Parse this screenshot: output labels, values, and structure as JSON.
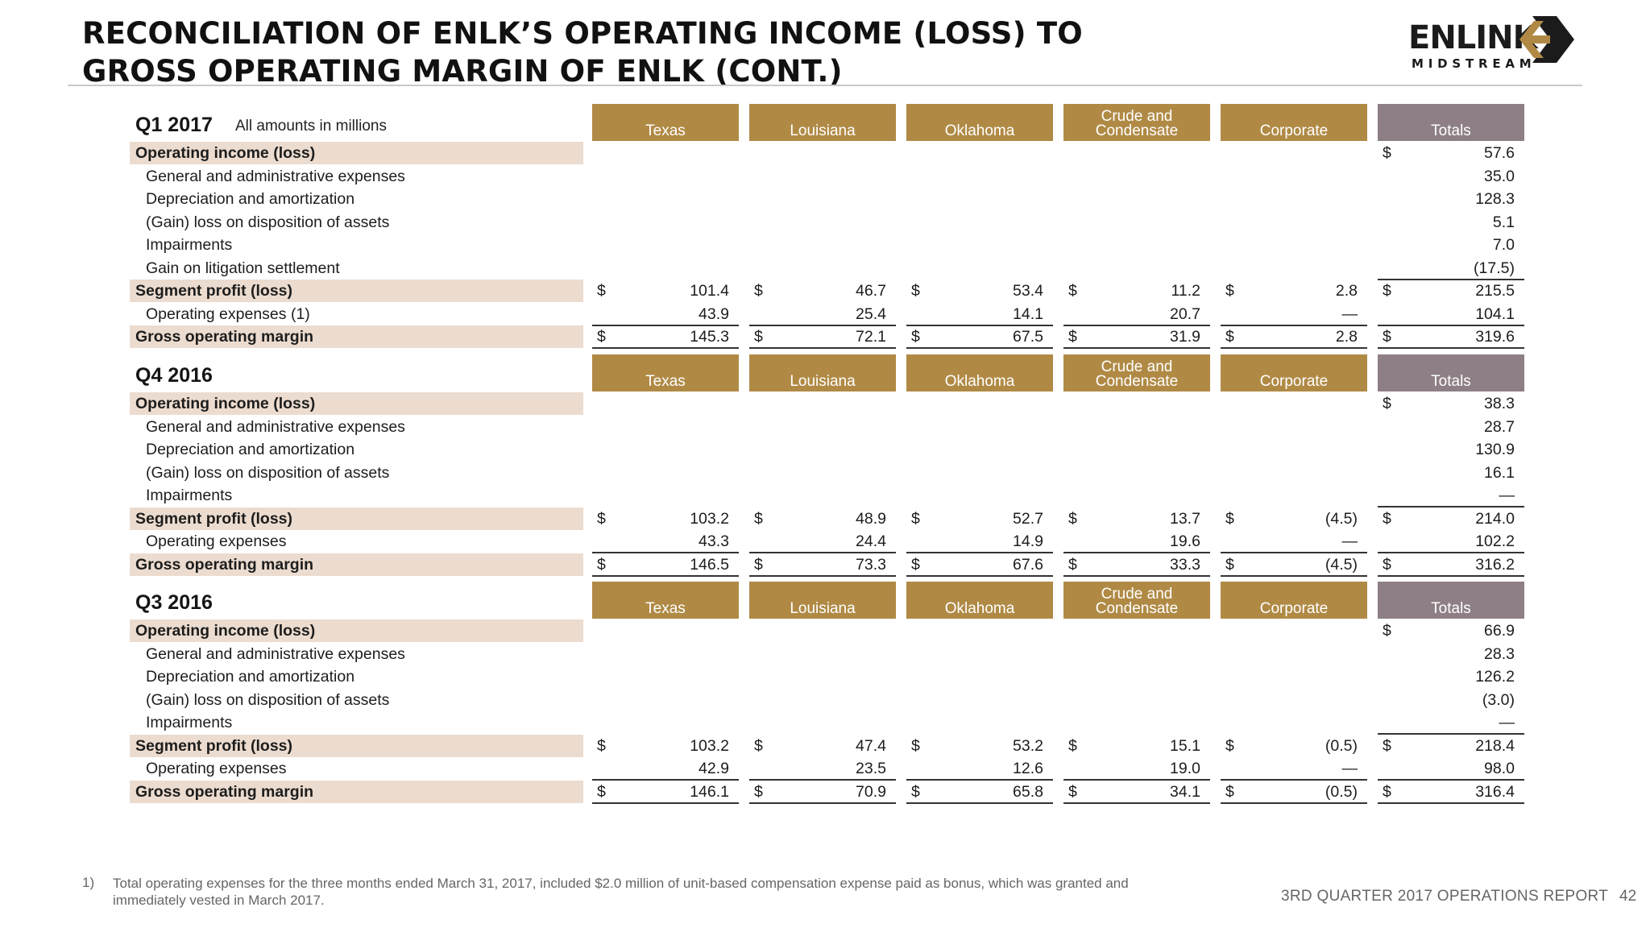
{
  "title_line1": "RECONCILIATION OF ENLK’S OPERATING INCOME (LOSS) TO",
  "title_line2": "GROSS OPERATING MARGIN OF ENLK (CONT.)",
  "logo": {
    "word": "ENLINK",
    "sub": "MIDSTREAM"
  },
  "amounts_note": "All amounts in millions",
  "columns": [
    "Texas",
    "Louisiana",
    "Oklahoma",
    "Crude and Condensate",
    "Corporate",
    "Totals"
  ],
  "sections": [
    {
      "label": "Q1 2017",
      "rows": [
        {
          "label": "Operating income (loss)",
          "bold": true,
          "values": [
            "",
            "",
            "",
            "",
            "",
            "57.6"
          ],
          "dollar": [
            false,
            false,
            false,
            false,
            false,
            true
          ],
          "underline": false
        },
        {
          "label": "General and administrative expenses",
          "bold": false,
          "values": [
            "",
            "",
            "",
            "",
            "",
            "35.0"
          ],
          "dollar": [
            false,
            false,
            false,
            false,
            false,
            false
          ],
          "underline": false
        },
        {
          "label": "Depreciation and amortization",
          "bold": false,
          "values": [
            "",
            "",
            "",
            "",
            "",
            "128.3"
          ],
          "dollar": [
            false,
            false,
            false,
            false,
            false,
            false
          ],
          "underline": false
        },
        {
          "label": "(Gain) loss on disposition of assets",
          "bold": false,
          "values": [
            "",
            "",
            "",
            "",
            "",
            "5.1"
          ],
          "dollar": [
            false,
            false,
            false,
            false,
            false,
            false
          ],
          "underline": false
        },
        {
          "label": "Impairments",
          "bold": false,
          "values": [
            "",
            "",
            "",
            "",
            "",
            "7.0"
          ],
          "dollar": [
            false,
            false,
            false,
            false,
            false,
            false
          ],
          "underline": false
        },
        {
          "label": "Gain on litigation settlement",
          "bold": false,
          "values": [
            "",
            "",
            "",
            "",
            "",
            "(17.5)"
          ],
          "dollar": [
            false,
            false,
            false,
            false,
            false,
            false
          ],
          "underline": true
        },
        {
          "label": "Segment profit (loss)",
          "bold": true,
          "values": [
            "101.4",
            "46.7",
            "53.4",
            "11.2",
            "2.8",
            "215.5"
          ],
          "dollar": [
            true,
            true,
            true,
            true,
            true,
            true
          ],
          "underline": false
        },
        {
          "label": "Operating expenses (1)",
          "bold": false,
          "values": [
            "43.9",
            "25.4",
            "14.1",
            "20.7",
            "—",
            "104.1"
          ],
          "dollar": [
            false,
            false,
            false,
            false,
            false,
            false
          ],
          "underline": true
        },
        {
          "label": "Gross operating margin",
          "bold": true,
          "values": [
            "145.3",
            "72.1",
            "67.5",
            "31.9",
            "2.8",
            "319.6"
          ],
          "dollar": [
            true,
            true,
            true,
            true,
            true,
            true
          ],
          "underline": true
        }
      ]
    },
    {
      "label": "Q4 2016",
      "rows": [
        {
          "label": "Operating income (loss)",
          "bold": true,
          "values": [
            "",
            "",
            "",
            "",
            "",
            "38.3"
          ],
          "dollar": [
            false,
            false,
            false,
            false,
            false,
            true
          ],
          "underline": false
        },
        {
          "label": "General and administrative expenses",
          "bold": false,
          "values": [
            "",
            "",
            "",
            "",
            "",
            "28.7"
          ],
          "dollar": [
            false,
            false,
            false,
            false,
            false,
            false
          ],
          "underline": false
        },
        {
          "label": "Depreciation and amortization",
          "bold": false,
          "values": [
            "",
            "",
            "",
            "",
            "",
            "130.9"
          ],
          "dollar": [
            false,
            false,
            false,
            false,
            false,
            false
          ],
          "underline": false
        },
        {
          "label": "(Gain) loss on disposition of assets",
          "bold": false,
          "values": [
            "",
            "",
            "",
            "",
            "",
            "16.1"
          ],
          "dollar": [
            false,
            false,
            false,
            false,
            false,
            false
          ],
          "underline": false
        },
        {
          "label": "Impairments",
          "bold": false,
          "values": [
            "",
            "",
            "",
            "",
            "",
            "—"
          ],
          "dollar": [
            false,
            false,
            false,
            false,
            false,
            false
          ],
          "underline": true
        },
        {
          "label": "Segment profit (loss)",
          "bold": true,
          "values": [
            "103.2",
            "48.9",
            "52.7",
            "13.7",
            "(4.5)",
            "214.0"
          ],
          "dollar": [
            true,
            true,
            true,
            true,
            true,
            true
          ],
          "underline": false
        },
        {
          "label": "Operating expenses",
          "bold": false,
          "values": [
            "43.3",
            "24.4",
            "14.9",
            "19.6",
            "—",
            "102.2"
          ],
          "dollar": [
            false,
            false,
            false,
            false,
            false,
            false
          ],
          "underline": true
        },
        {
          "label": "Gross operating margin",
          "bold": true,
          "values": [
            "146.5",
            "73.3",
            "67.6",
            "33.3",
            "(4.5)",
            "316.2"
          ],
          "dollar": [
            true,
            true,
            true,
            true,
            true,
            true
          ],
          "underline": true
        }
      ]
    },
    {
      "label": "Q3 2016",
      "rows": [
        {
          "label": "Operating income (loss)",
          "bold": true,
          "values": [
            "",
            "",
            "",
            "",
            "",
            "66.9"
          ],
          "dollar": [
            false,
            false,
            false,
            false,
            false,
            true
          ],
          "underline": false
        },
        {
          "label": "General and administrative expenses",
          "bold": false,
          "values": [
            "",
            "",
            "",
            "",
            "",
            "28.3"
          ],
          "dollar": [
            false,
            false,
            false,
            false,
            false,
            false
          ],
          "underline": false
        },
        {
          "label": "Depreciation and amortization",
          "bold": false,
          "values": [
            "",
            "",
            "",
            "",
            "",
            "126.2"
          ],
          "dollar": [
            false,
            false,
            false,
            false,
            false,
            false
          ],
          "underline": false
        },
        {
          "label": "(Gain) loss on disposition of assets",
          "bold": false,
          "values": [
            "",
            "",
            "",
            "",
            "",
            "(3.0)"
          ],
          "dollar": [
            false,
            false,
            false,
            false,
            false,
            false
          ],
          "underline": false
        },
        {
          "label": "Impairments",
          "bold": false,
          "values": [
            "",
            "",
            "",
            "",
            "",
            "—"
          ],
          "dollar": [
            false,
            false,
            false,
            false,
            false,
            false
          ],
          "underline": true
        },
        {
          "label": "Segment profit (loss)",
          "bold": true,
          "values": [
            "103.2",
            "47.4",
            "53.2",
            "15.1",
            "(0.5)",
            "218.4"
          ],
          "dollar": [
            true,
            true,
            true,
            true,
            true,
            true
          ],
          "underline": false
        },
        {
          "label": "Operating expenses",
          "bold": false,
          "values": [
            "42.9",
            "23.5",
            "12.6",
            "19.0",
            "—",
            "98.0"
          ],
          "dollar": [
            false,
            false,
            false,
            false,
            false,
            false
          ],
          "underline": true
        },
        {
          "label": "Gross operating margin",
          "bold": true,
          "values": [
            "146.1",
            "70.9",
            "65.8",
            "34.1",
            "(0.5)",
            "316.4"
          ],
          "dollar": [
            true,
            true,
            true,
            true,
            true,
            true
          ],
          "underline": true
        }
      ]
    }
  ],
  "dollar_sign": "$",
  "footnote_number": "1)",
  "footnote_text": "Total operating expenses for the three months ended March 31, 2017, included $2.0 million of unit-based compensation expense paid as bonus, which was granted and immediately vested in March 2017.",
  "footer": "3RD QUARTER 2017 OPERATIONS REPORT",
  "page_number": "42",
  "colors": {
    "header": "#b08a45",
    "totals_header": "#8e7f86",
    "band": "#ecdccf"
  }
}
